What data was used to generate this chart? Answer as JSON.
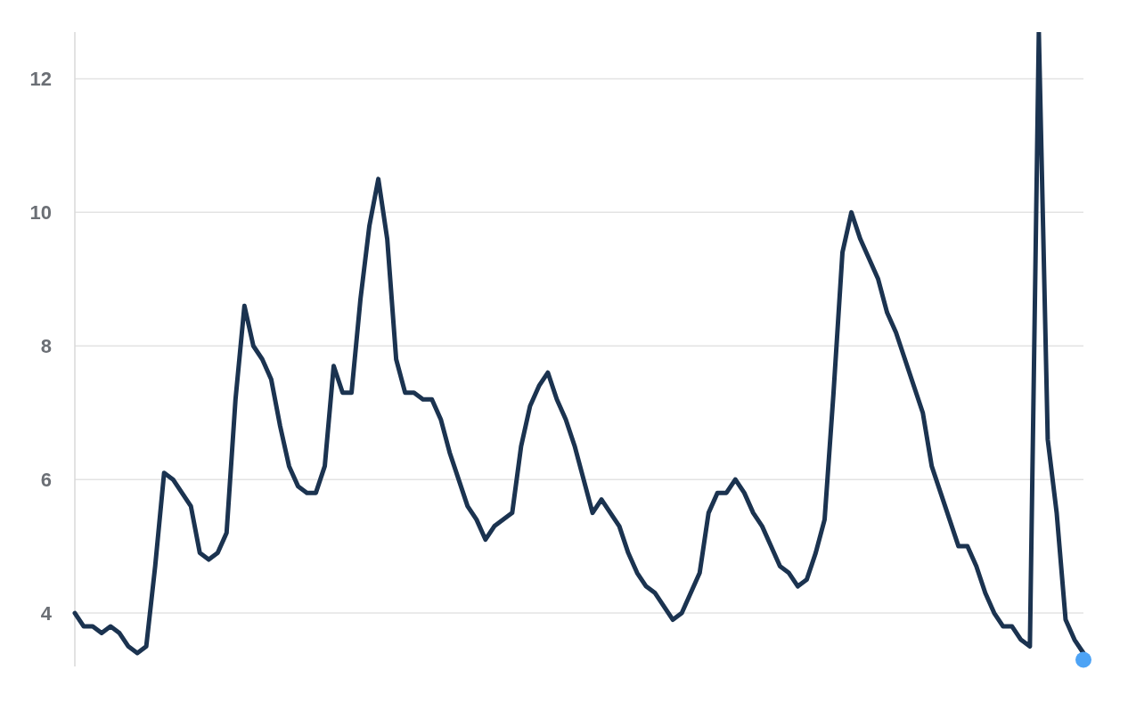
{
  "chart_data": {
    "type": "line",
    "categories": [
      null,
      null,
      null,
      null,
      null,
      null,
      null,
      null,
      null,
      null,
      null,
      null,
      null,
      null,
      null,
      null,
      null,
      null,
      null,
      null,
      null,
      null,
      null,
      null,
      null,
      null,
      null,
      null,
      null,
      null,
      null,
      null,
      null,
      null,
      null,
      null,
      null,
      null,
      null,
      null,
      null,
      null,
      null,
      null,
      null,
      null,
      null,
      null,
      null,
      null,
      null,
      null,
      null,
      null,
      null,
      null,
      null,
      null,
      null,
      null,
      null,
      null,
      null,
      null,
      null,
      null,
      null,
      null,
      null,
      null,
      null,
      null,
      null,
      null,
      null,
      null,
      null,
      null,
      null,
      null,
      null,
      null,
      null,
      null,
      null,
      null,
      null,
      null,
      null,
      null,
      null,
      null,
      null,
      null,
      null,
      null,
      null,
      null,
      null,
      null,
      null,
      null,
      null,
      null,
      null,
      null,
      null,
      null,
      null,
      null,
      null,
      null,
      null,
      null
    ],
    "series": [
      {
        "color": "#1b3350",
        "marker": "none",
        "values": [
          4.0,
          3.8,
          3.8,
          3.7,
          3.8,
          3.7,
          3.5,
          3.4,
          3.5,
          4.7,
          6.1,
          6.0,
          5.8,
          5.6,
          4.9,
          4.8,
          4.9,
          5.2,
          7.2,
          8.6,
          8.0,
          7.8,
          7.5,
          6.8,
          6.2,
          5.9,
          5.8,
          5.8,
          6.2,
          7.7,
          7.3,
          7.3,
          8.7,
          9.8,
          10.5,
          9.6,
          7.8,
          7.3,
          7.3,
          7.2,
          7.2,
          6.9,
          6.4,
          6.0,
          5.6,
          5.4,
          5.1,
          5.3,
          5.4,
          5.5,
          6.5,
          7.1,
          7.4,
          7.6,
          7.2,
          6.9,
          6.5,
          6.0,
          5.5,
          5.7,
          5.5,
          5.3,
          4.9,
          4.6,
          4.4,
          4.3,
          4.1,
          3.9,
          4.0,
          4.3,
          4.6,
          5.5,
          5.8,
          5.8,
          6.0,
          5.8,
          5.5,
          5.3,
          5.0,
          4.7,
          4.6,
          4.4,
          4.5,
          4.9,
          5.4,
          7.3,
          9.4,
          10.0,
          9.6,
          9.3,
          9.0,
          8.5,
          8.2,
          7.8,
          7.4,
          7.0,
          6.2,
          5.8,
          5.4,
          5.0,
          5.0,
          4.7,
          4.3,
          4.0,
          3.8,
          3.8,
          3.6,
          3.5,
          12.7,
          6.6,
          5.5,
          3.9,
          3.6,
          3.4
        ]
      },
      {
        "type": "scatter",
        "color": "#4da3f5",
        "marker": "circle",
        "values": [
          null,
          null,
          null,
          null,
          null,
          null,
          null,
          null,
          null,
          null,
          null,
          null,
          null,
          null,
          null,
          null,
          null,
          null,
          null,
          null,
          null,
          null,
          null,
          null,
          null,
          null,
          null,
          null,
          null,
          null,
          null,
          null,
          null,
          null,
          null,
          null,
          null,
          null,
          null,
          null,
          null,
          null,
          null,
          null,
          null,
          null,
          null,
          null,
          null,
          null,
          null,
          null,
          null,
          null,
          null,
          null,
          null,
          null,
          null,
          null,
          null,
          null,
          null,
          null,
          null,
          null,
          null,
          null,
          null,
          null,
          null,
          null,
          null,
          null,
          null,
          null,
          null,
          null,
          null,
          null,
          null,
          null,
          null,
          null,
          null,
          null,
          null,
          null,
          null,
          null,
          null,
          null,
          null,
          null,
          null,
          null,
          null,
          null,
          null,
          null,
          null,
          null,
          null,
          null,
          null,
          null,
          null,
          null,
          null,
          null,
          null,
          null,
          null,
          3.3
        ]
      }
    ],
    "ylim": [
      3.2,
      12.7
    ],
    "yticks": [
      4,
      6,
      8,
      10,
      12
    ],
    "grid": "y",
    "tick_labels": "y",
    "line_style": "solid"
  }
}
